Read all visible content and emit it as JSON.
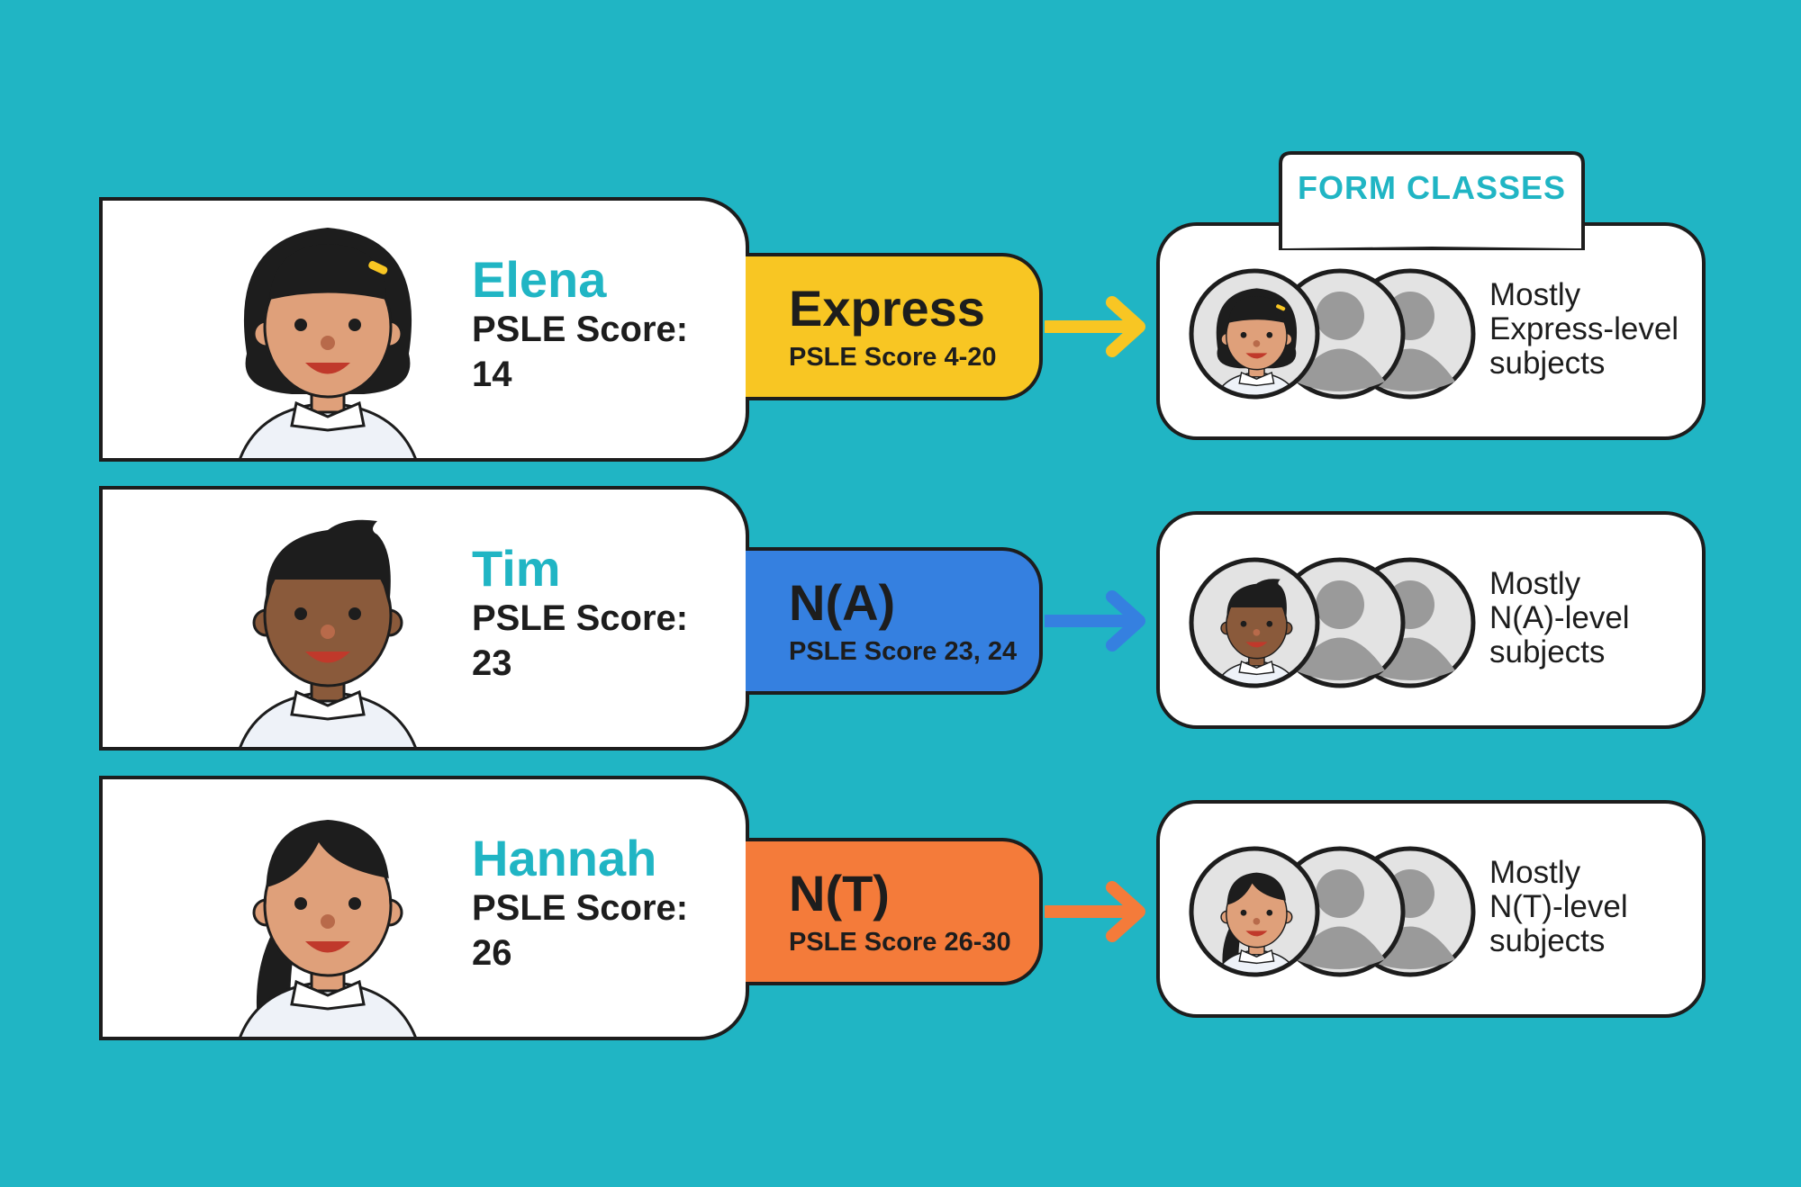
{
  "students": [
    {
      "name": "Elena",
      "score_label": "PSLE Score:",
      "score": "14",
      "skin": "#dfa07a",
      "hair": "#1d1d1d",
      "hair_style": "bob",
      "level": "Express",
      "range": "PSLE Score 4-20",
      "color": "#f8c623",
      "form_text": [
        "Mostly",
        "Express-level",
        "subjects"
      ]
    },
    {
      "name": "Tim",
      "score_label": "PSLE Score:",
      "score": "23",
      "skin": "#8a5a3b",
      "hair": "#1d1d1d",
      "hair_style": "short",
      "level": "N(A)",
      "range": "PSLE Score 23, 24",
      "color": "#3580e0",
      "form_text": [
        "Mostly",
        "N(A)-level",
        "subjects"
      ]
    },
    {
      "name": "Hannah",
      "score_label": "PSLE Score:",
      "score": "26",
      "skin": "#dfa07a",
      "hair": "#1d1d1d",
      "hair_style": "ponytail",
      "level": "N(T)",
      "range": "PSLE Score 26-30",
      "color": "#f47b3a",
      "form_text": [
        "Mostly",
        "N(T)-level",
        "subjects"
      ]
    }
  ],
  "form_classes_label": "FORM CLASSES",
  "colors": {
    "background": "#20b5c4",
    "accent": "#20b5c4",
    "outline": "#1d1d1d",
    "placeholder_bg": "#e3e3e3",
    "placeholder_fg": "#9a9a9a"
  }
}
